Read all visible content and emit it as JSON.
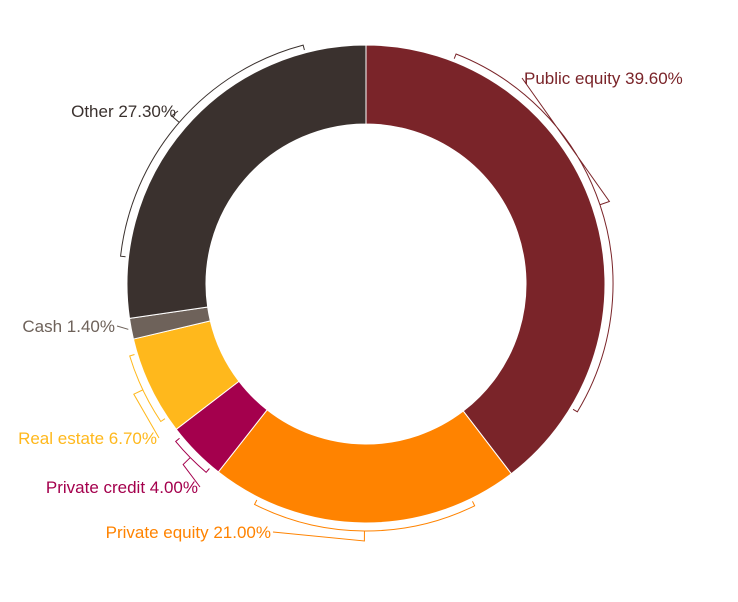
{
  "chart_data": {
    "type": "pie",
    "variant": "donut",
    "title": "",
    "categories": [
      "Public equity",
      "Private equity",
      "Private credit",
      "Real estate",
      "Cash",
      "Other"
    ],
    "values": [
      39.6,
      21.0,
      4.0,
      6.7,
      1.4,
      27.3
    ],
    "unit": "%",
    "data_labels": [
      "Public equity 39.60%",
      "Private equity 21.00%",
      "Private credit 4.00%",
      "Real estate 6.70%",
      "Cash 1.40%",
      "Other 27.30%"
    ],
    "colors": [
      "#7a2429",
      "#ff8300",
      "#a4004d",
      "#ffb81c",
      "#6e625a",
      "#3a312e"
    ],
    "label_colors": [
      "#7a2429",
      "#ff8300",
      "#a4004d",
      "#ffb81c",
      "#6e625a",
      "#3a312e"
    ],
    "start_angle_deg": 0,
    "direction": "clockwise",
    "legend": "none"
  }
}
